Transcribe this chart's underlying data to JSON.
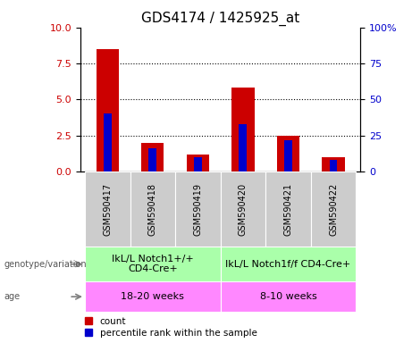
{
  "title": "GDS4174 / 1425925_at",
  "samples": [
    "GSM590417",
    "GSM590418",
    "GSM590419",
    "GSM590420",
    "GSM590421",
    "GSM590422"
  ],
  "count_values": [
    8.5,
    2.0,
    1.2,
    5.8,
    2.5,
    1.0
  ],
  "percentile_values": [
    40,
    16,
    10,
    33,
    22,
    8
  ],
  "left_ylim": [
    0,
    10
  ],
  "right_ylim": [
    0,
    100
  ],
  "left_yticks": [
    0,
    2.5,
    5,
    7.5,
    10
  ],
  "right_yticks": [
    0,
    25,
    50,
    75,
    100
  ],
  "right_yticklabels": [
    "0",
    "25",
    "50",
    "75",
    "100%"
  ],
  "bar_color_red": "#cc0000",
  "bar_color_blue": "#0000cc",
  "bar_width": 0.5,
  "group1_label": "IkL/L Notch1+/+\nCD4-Cre+",
  "group2_label": "IkL/L Notch1f/f CD4-Cre+",
  "age1_label": "18-20 weeks",
  "age2_label": "8-10 weeks",
  "genotype_label": "genotype/variation",
  "age_label": "age",
  "legend_count": "count",
  "legend_percentile": "percentile rank within the sample",
  "group1_color": "#aaffaa",
  "group2_color": "#aaffaa",
  "age_color": "#ff88ff",
  "sample_bg_color": "#cccccc",
  "title_fontsize": 11,
  "tick_fontsize": 8,
  "annotation_fontsize": 8,
  "legend_fontsize": 7.5,
  "sample_fontsize": 7,
  "dotted_lines": [
    2.5,
    5.0,
    7.5
  ]
}
